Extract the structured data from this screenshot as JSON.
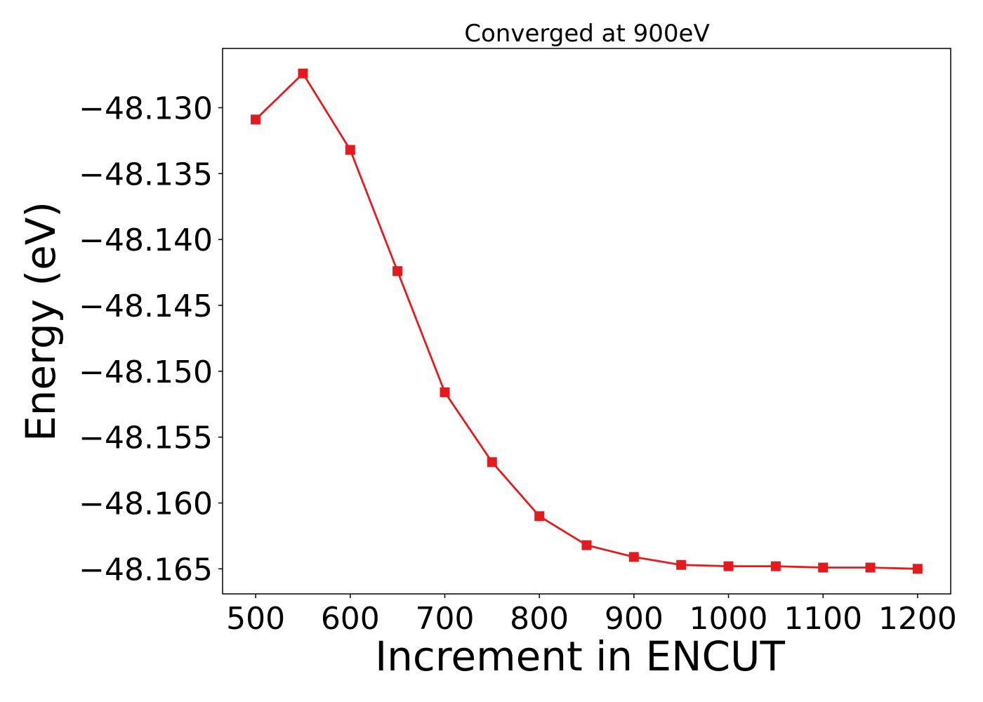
{
  "chart_data": {
    "type": "line",
    "title": "Converged at 900eV",
    "xlabel": "Increment in ENCUT",
    "ylabel": "Energy (eV)",
    "x": [
      500,
      550,
      600,
      650,
      700,
      750,
      800,
      850,
      900,
      950,
      1000,
      1050,
      1100,
      1150,
      1200
    ],
    "series": [
      {
        "values": [
          -48.1309,
          -48.1274,
          -48.1332,
          -48.1424,
          -48.1516,
          -48.1569,
          -48.161,
          -48.1632,
          -48.1641,
          -48.1647,
          -48.1648,
          -48.1648,
          -48.1649,
          -48.1649,
          -48.165
        ]
      }
    ],
    "xlim": [
      465,
      1235
    ],
    "ylim": [
      -48.1669,
      -48.1255
    ],
    "xticks": [
      500,
      600,
      700,
      800,
      900,
      1000,
      1100,
      1200
    ],
    "xtick_labels": [
      "500",
      "600",
      "700",
      "800",
      "900",
      "1000",
      "1100",
      "1200"
    ],
    "yticks": [
      -48.13,
      -48.135,
      -48.14,
      -48.145,
      -48.15,
      -48.155,
      -48.16,
      -48.165
    ],
    "ytick_labels": [
      "−48.130",
      "−48.135",
      "−48.140",
      "−48.145",
      "−48.150",
      "−48.155",
      "−48.160",
      "−48.165"
    ],
    "marker": "square",
    "line_color": "#e41a1c",
    "grid": false,
    "legend": "none"
  }
}
